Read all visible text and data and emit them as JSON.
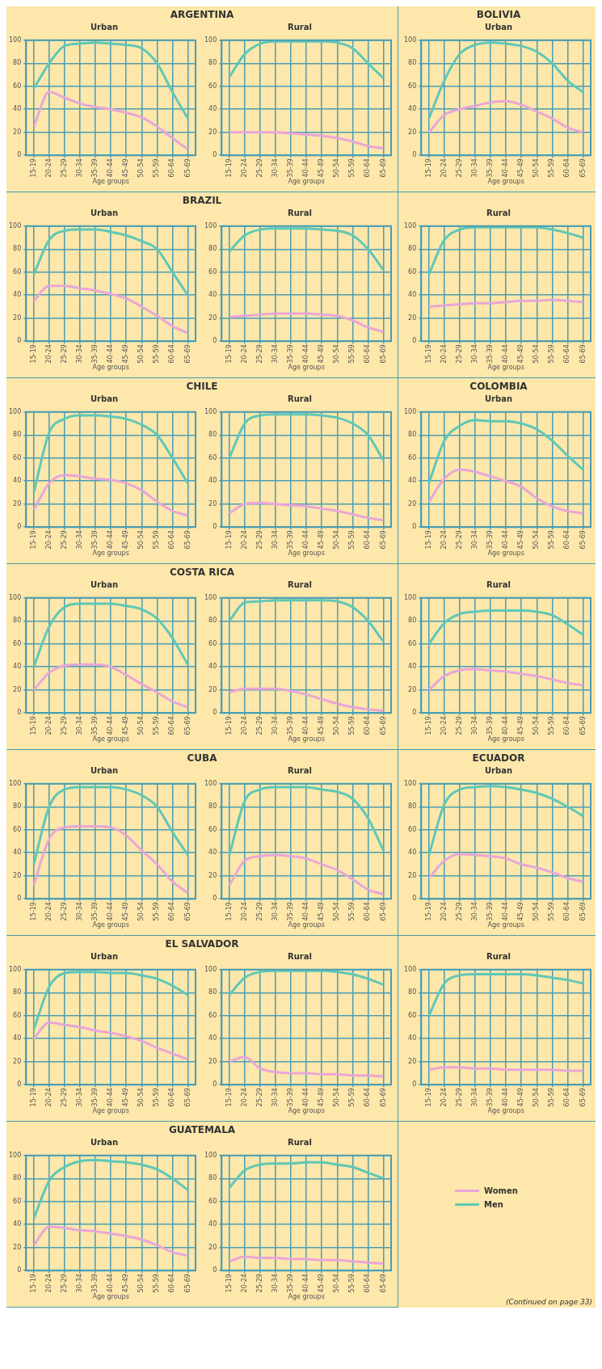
{
  "chart_data": [
    {
      "type": "line",
      "title": "ARGENTINA",
      "subtitle": "Urban",
      "xlabel": "Age groups",
      "categories": [
        "15-19",
        "20-24",
        "25-29",
        "30-34",
        "35-39",
        "40-44",
        "45-49",
        "50-54",
        "55-59",
        "60-64",
        "65-69"
      ],
      "ylim": [
        0,
        100
      ],
      "yticks": [
        0,
        20,
        40,
        60,
        80,
        100
      ],
      "grid": true,
      "series": [
        {
          "color": "#e9a6d6",
          "values": [
            25,
            55,
            50,
            45,
            42,
            40,
            37,
            33,
            25,
            15,
            5
          ]
        },
        {
          "color": "#5ec8b6",
          "values": [
            58,
            80,
            95,
            97,
            98,
            97,
            96,
            93,
            80,
            55,
            32
          ]
        }
      ]
    },
    {
      "type": "line",
      "subtitle": "Rural",
      "xlabel": "Age groups",
      "categories": [
        "15-19",
        "20-24",
        "25-29",
        "30-34",
        "35-39",
        "40-44",
        "45-49",
        "50-54",
        "55-59",
        "60-64",
        "65-69"
      ],
      "ylim": [
        0,
        100
      ],
      "yticks": [
        0,
        20,
        40,
        60,
        80,
        100
      ],
      "grid": true,
      "series": [
        {
          "color": "#e9a6d6",
          "values": [
            20,
            20,
            20,
            20,
            19,
            18,
            17,
            15,
            12,
            8,
            6
          ]
        },
        {
          "color": "#5ec8b6",
          "values": [
            68,
            88,
            97,
            99,
            99,
            99,
            99,
            98,
            93,
            80,
            67
          ]
        }
      ]
    },
    {
      "type": "line",
      "title": "BOLIVIA",
      "subtitle": "Urban",
      "xlabel": "Age groups",
      "categories": [
        "15-19",
        "20-24",
        "25-29",
        "30-34",
        "35-39",
        "40-44",
        "45-49",
        "50-54",
        "55-59",
        "60-64",
        "65-69"
      ],
      "ylim": [
        0,
        100
      ],
      "yticks": [
        0,
        20,
        40,
        60,
        80,
        100
      ],
      "grid": true,
      "series": [
        {
          "color": "#e9a6d6",
          "values": [
            20,
            35,
            40,
            43,
            46,
            47,
            44,
            38,
            32,
            24,
            20
          ]
        },
        {
          "color": "#5ec8b6",
          "values": [
            32,
            65,
            88,
            96,
            98,
            97,
            95,
            90,
            80,
            65,
            55
          ]
        }
      ]
    },
    {
      "type": "line",
      "title": "BRAZIL",
      "subtitle": "Urban",
      "xlabel": "Age groups",
      "categories": [
        "15-19",
        "20-24",
        "25-29",
        "30-34",
        "35-39",
        "40-44",
        "45-49",
        "50-54",
        "55-59",
        "60-64",
        "65-69"
      ],
      "ylim": [
        0,
        100
      ],
      "yticks": [
        0,
        20,
        40,
        60,
        80,
        100
      ],
      "grid": true,
      "series": [
        {
          "color": "#e9a6d6",
          "values": [
            35,
            48,
            48,
            46,
            44,
            41,
            37,
            30,
            22,
            13,
            7
          ]
        },
        {
          "color": "#5ec8b6",
          "values": [
            58,
            88,
            96,
            97,
            97,
            95,
            92,
            87,
            80,
            60,
            40
          ]
        }
      ]
    },
    {
      "type": "line",
      "subtitle": "Rural",
      "xlabel": "Age groups",
      "categories": [
        "15-19",
        "20-24",
        "25-29",
        "30-34",
        "35-39",
        "40-44",
        "45-49",
        "50-54",
        "55-59",
        "60-64",
        "65-69"
      ],
      "ylim": [
        0,
        100
      ],
      "yticks": [
        0,
        20,
        40,
        60,
        80,
        100
      ],
      "grid": true,
      "series": [
        {
          "color": "#e9a6d6",
          "values": [
            21,
            22,
            23,
            24,
            24,
            24,
            23,
            22,
            18,
            12,
            8
          ]
        },
        {
          "color": "#5ec8b6",
          "values": [
            78,
            92,
            97,
            98,
            98,
            98,
            97,
            96,
            92,
            80,
            62
          ]
        }
      ]
    },
    {
      "type": "line",
      "subtitle": "Rural",
      "xlabel": "Age groups",
      "categories": [
        "15-19",
        "20-24",
        "25-29",
        "30-34",
        "35-39",
        "40-44",
        "45-49",
        "50-54",
        "55-59",
        "60-64",
        "65-69"
      ],
      "ylim": [
        0,
        100
      ],
      "yticks": [
        0,
        20,
        40,
        60,
        80,
        100
      ],
      "grid": true,
      "series": [
        {
          "color": "#e9a6d6",
          "values": [
            30,
            31,
            32,
            33,
            33,
            34,
            35,
            35,
            36,
            35,
            34
          ]
        },
        {
          "color": "#5ec8b6",
          "values": [
            58,
            88,
            97,
            99,
            99,
            99,
            99,
            99,
            97,
            94,
            90
          ]
        }
      ]
    },
    {
      "type": "line",
      "title": "CHILE",
      "subtitle": "Urban",
      "xlabel": "Age groups",
      "categories": [
        "15-19",
        "20-24",
        "25-29",
        "30-34",
        "35-39",
        "40-44",
        "45-49",
        "50-54",
        "55-59",
        "60-64",
        "65-69"
      ],
      "ylim": [
        0,
        100
      ],
      "yticks": [
        0,
        20,
        40,
        60,
        80,
        100
      ],
      "grid": true,
      "series": [
        {
          "color": "#e9a6d6",
          "values": [
            15,
            38,
            45,
            44,
            42,
            41,
            38,
            32,
            22,
            14,
            10
          ]
        },
        {
          "color": "#5ec8b6",
          "values": [
            30,
            82,
            94,
            97,
            97,
            96,
            94,
            89,
            80,
            60,
            38
          ]
        }
      ]
    },
    {
      "type": "line",
      "subtitle": "Rural",
      "xlabel": "Age groups",
      "categories": [
        "15-19",
        "20-24",
        "25-29",
        "30-34",
        "35-39",
        "40-44",
        "45-49",
        "50-54",
        "55-59",
        "60-64",
        "65-69"
      ],
      "ylim": [
        0,
        100
      ],
      "yticks": [
        0,
        20,
        40,
        60,
        80,
        100
      ],
      "grid": true,
      "series": [
        {
          "color": "#e9a6d6",
          "values": [
            12,
            20,
            21,
            20,
            19,
            18,
            16,
            14,
            11,
            8,
            6
          ]
        },
        {
          "color": "#5ec8b6",
          "values": [
            60,
            90,
            97,
            98,
            98,
            98,
            97,
            95,
            90,
            80,
            58
          ]
        }
      ]
    },
    {
      "type": "line",
      "title": "COLOMBIA",
      "subtitle": "Urban",
      "xlabel": "Age groups",
      "categories": [
        "15-19",
        "20-24",
        "25-29",
        "30-34",
        "35-39",
        "40-44",
        "45-49",
        "50-54",
        "55-59",
        "60-64",
        "65-69"
      ],
      "ylim": [
        0,
        100
      ],
      "yticks": [
        0,
        20,
        40,
        60,
        80,
        100
      ],
      "grid": true,
      "series": [
        {
          "color": "#e9a6d6",
          "values": [
            22,
            42,
            50,
            48,
            44,
            40,
            35,
            25,
            18,
            14,
            12
          ]
        },
        {
          "color": "#5ec8b6",
          "values": [
            38,
            75,
            88,
            93,
            92,
            92,
            90,
            85,
            75,
            62,
            50
          ]
        }
      ]
    },
    {
      "type": "line",
      "title": "COSTA RICA",
      "subtitle": "Urban",
      "xlabel": "Age groups",
      "categories": [
        "15-19",
        "20-24",
        "25-29",
        "30-34",
        "35-39",
        "40-44",
        "45-49",
        "50-54",
        "55-59",
        "60-64",
        "65-69"
      ],
      "ylim": [
        0,
        100
      ],
      "yticks": [
        0,
        20,
        40,
        60,
        80,
        100
      ],
      "grid": true,
      "series": [
        {
          "color": "#e9a6d6",
          "values": [
            20,
            35,
            41,
            42,
            42,
            40,
            33,
            25,
            18,
            10,
            5
          ]
        },
        {
          "color": "#5ec8b6",
          "values": [
            40,
            75,
            92,
            95,
            95,
            95,
            93,
            90,
            82,
            65,
            42
          ]
        }
      ]
    },
    {
      "type": "line",
      "subtitle": "Rural",
      "xlabel": "Age groups",
      "categories": [
        "15-19",
        "20-24",
        "25-29",
        "30-34",
        "35-39",
        "40-44",
        "45-49",
        "50-54",
        "55-59",
        "60-64",
        "65-69"
      ],
      "ylim": [
        0,
        100
      ],
      "yticks": [
        0,
        20,
        40,
        60,
        80,
        100
      ],
      "grid": true,
      "series": [
        {
          "color": "#e9a6d6",
          "values": [
            18,
            21,
            21,
            21,
            19,
            16,
            12,
            8,
            5,
            3,
            2
          ]
        },
        {
          "color": "#5ec8b6",
          "values": [
            80,
            96,
            97,
            98,
            98,
            98,
            98,
            97,
            92,
            80,
            62
          ]
        }
      ]
    },
    {
      "type": "line",
      "subtitle": "Rural",
      "xlabel": "Age groups",
      "categories": [
        "15-19",
        "20-24",
        "25-29",
        "30-34",
        "35-39",
        "40-44",
        "45-49",
        "50-54",
        "55-59",
        "60-64",
        "65-69"
      ],
      "ylim": [
        0,
        100
      ],
      "yticks": [
        0,
        20,
        40,
        60,
        80,
        100
      ],
      "grid": true,
      "series": [
        {
          "color": "#e9a6d6",
          "values": [
            20,
            32,
            37,
            38,
            37,
            36,
            34,
            32,
            29,
            26,
            24
          ]
        },
        {
          "color": "#5ec8b6",
          "values": [
            60,
            78,
            86,
            88,
            89,
            89,
            89,
            88,
            85,
            77,
            68
          ]
        }
      ]
    },
    {
      "type": "line",
      "title": "CUBA",
      "subtitle": "Urban",
      "xlabel": "Age groups",
      "categories": [
        "15-19",
        "20-24",
        "25-29",
        "30-34",
        "35-39",
        "40-44",
        "45-49",
        "50-54",
        "55-59",
        "60-64",
        "65-69"
      ],
      "ylim": [
        0,
        100
      ],
      "yticks": [
        0,
        20,
        40,
        60,
        80,
        100
      ],
      "grid": true,
      "series": [
        {
          "color": "#e9a6d6",
          "values": [
            12,
            52,
            62,
            63,
            63,
            62,
            55,
            42,
            30,
            15,
            5
          ]
        },
        {
          "color": "#5ec8b6",
          "values": [
            30,
            80,
            95,
            97,
            97,
            97,
            95,
            90,
            80,
            58,
            38
          ]
        }
      ]
    },
    {
      "type": "line",
      "subtitle": "Rural",
      "xlabel": "Age groups",
      "categories": [
        "15-19",
        "20-24",
        "25-29",
        "30-34",
        "35-39",
        "40-44",
        "45-49",
        "50-54",
        "55-59",
        "60-64",
        "65-69"
      ],
      "ylim": [
        0,
        100
      ],
      "yticks": [
        0,
        20,
        40,
        60,
        80,
        100
      ],
      "grid": true,
      "series": [
        {
          "color": "#e9a6d6",
          "values": [
            12,
            33,
            37,
            38,
            37,
            35,
            30,
            25,
            17,
            8,
            4
          ]
        },
        {
          "color": "#5ec8b6",
          "values": [
            38,
            85,
            95,
            97,
            97,
            97,
            95,
            93,
            87,
            70,
            42
          ]
        }
      ]
    },
    {
      "type": "line",
      "title": "ECUADOR",
      "subtitle": "Urban",
      "xlabel": "Age groups",
      "categories": [
        "15-19",
        "20-24",
        "25-29",
        "30-34",
        "35-39",
        "40-44",
        "45-49",
        "50-54",
        "55-59",
        "60-64",
        "65-69"
      ],
      "ylim": [
        0,
        100
      ],
      "yticks": [
        0,
        20,
        40,
        60,
        80,
        100
      ],
      "grid": true,
      "series": [
        {
          "color": "#e9a6d6",
          "values": [
            18,
            33,
            39,
            38,
            37,
            35,
            30,
            27,
            23,
            18,
            15
          ]
        },
        {
          "color": "#5ec8b6",
          "values": [
            38,
            82,
            95,
            97,
            98,
            97,
            95,
            92,
            87,
            80,
            72
          ]
        }
      ]
    },
    {
      "type": "line",
      "title": "EL SALVADOR",
      "subtitle": "Urban",
      "xlabel": "Age groups",
      "categories": [
        "15-19",
        "20-24",
        "25-29",
        "30-34",
        "35-39",
        "40-44",
        "45-49",
        "50-54",
        "55-59",
        "60-64",
        "65-69"
      ],
      "ylim": [
        0,
        100
      ],
      "yticks": [
        0,
        20,
        40,
        60,
        80,
        100
      ],
      "grid": true,
      "series": [
        {
          "color": "#e9a6d6",
          "values": [
            40,
            54,
            52,
            50,
            47,
            45,
            42,
            38,
            32,
            27,
            22
          ]
        },
        {
          "color": "#5ec8b6",
          "values": [
            48,
            85,
            97,
            98,
            98,
            97,
            97,
            95,
            92,
            86,
            78
          ]
        }
      ]
    },
    {
      "type": "line",
      "subtitle": "Rural",
      "xlabel": "Age groups",
      "categories": [
        "15-19",
        "20-24",
        "25-29",
        "30-34",
        "35-39",
        "40-44",
        "45-49",
        "50-54",
        "55-59",
        "60-64",
        "65-69"
      ],
      "ylim": [
        0,
        100
      ],
      "yticks": [
        0,
        20,
        40,
        60,
        80,
        100
      ],
      "grid": true,
      "series": [
        {
          "color": "#e9a6d6",
          "values": [
            20,
            24,
            14,
            11,
            10,
            10,
            9,
            9,
            8,
            8,
            7
          ]
        },
        {
          "color": "#5ec8b6",
          "values": [
            78,
            93,
            98,
            99,
            99,
            99,
            99,
            98,
            96,
            92,
            87
          ]
        }
      ]
    },
    {
      "type": "line",
      "subtitle": "Rural",
      "xlabel": "Age groups",
      "categories": [
        "15-19",
        "20-24",
        "25-29",
        "30-34",
        "35-39",
        "40-44",
        "45-49",
        "50-54",
        "55-59",
        "60-64",
        "65-69"
      ],
      "ylim": [
        0,
        100
      ],
      "yticks": [
        0,
        20,
        40,
        60,
        80,
        100
      ],
      "grid": true,
      "series": [
        {
          "color": "#e9a6d6",
          "values": [
            13,
            15,
            15,
            14,
            14,
            13,
            13,
            13,
            13,
            12,
            12
          ]
        },
        {
          "color": "#5ec8b6",
          "values": [
            60,
            88,
            95,
            96,
            96,
            96,
            96,
            95,
            93,
            91,
            88
          ]
        }
      ]
    },
    {
      "type": "line",
      "title": "GUATEMALA",
      "subtitle": "Urban",
      "xlabel": "Age groups",
      "categories": [
        "15-19",
        "20-24",
        "25-29",
        "30-34",
        "35-39",
        "40-44",
        "45-49",
        "50-54",
        "55-59",
        "60-64",
        "65-69"
      ],
      "ylim": [
        0,
        100
      ],
      "yticks": [
        0,
        20,
        40,
        60,
        80,
        100
      ],
      "grid": true,
      "series": [
        {
          "color": "#e9a6d6",
          "values": [
            22,
            38,
            37,
            35,
            34,
            32,
            30,
            27,
            22,
            16,
            13
          ]
        },
        {
          "color": "#5ec8b6",
          "values": [
            45,
            78,
            90,
            95,
            96,
            95,
            94,
            92,
            88,
            80,
            70
          ]
        }
      ]
    },
    {
      "type": "line",
      "subtitle": "Rural",
      "xlabel": "Age groups",
      "categories": [
        "15-19",
        "20-24",
        "25-29",
        "30-34",
        "35-39",
        "40-44",
        "45-49",
        "50-54",
        "55-59",
        "60-64",
        "65-69"
      ],
      "ylim": [
        0,
        100
      ],
      "yticks": [
        0,
        20,
        40,
        60,
        80,
        100
      ],
      "grid": true,
      "legend": "right",
      "annotations": [
        "(Continued on page 33)"
      ],
      "series": [
        {
          "name": "Women",
          "color": "#e9a6d6",
          "values": [
            8,
            12,
            11,
            11,
            10,
            10,
            9,
            9,
            8,
            7,
            6
          ]
        },
        {
          "name": "Men",
          "color": "#5ec8b6",
          "values": [
            72,
            87,
            92,
            93,
            93,
            94,
            94,
            92,
            90,
            85,
            80
          ]
        }
      ]
    }
  ]
}
